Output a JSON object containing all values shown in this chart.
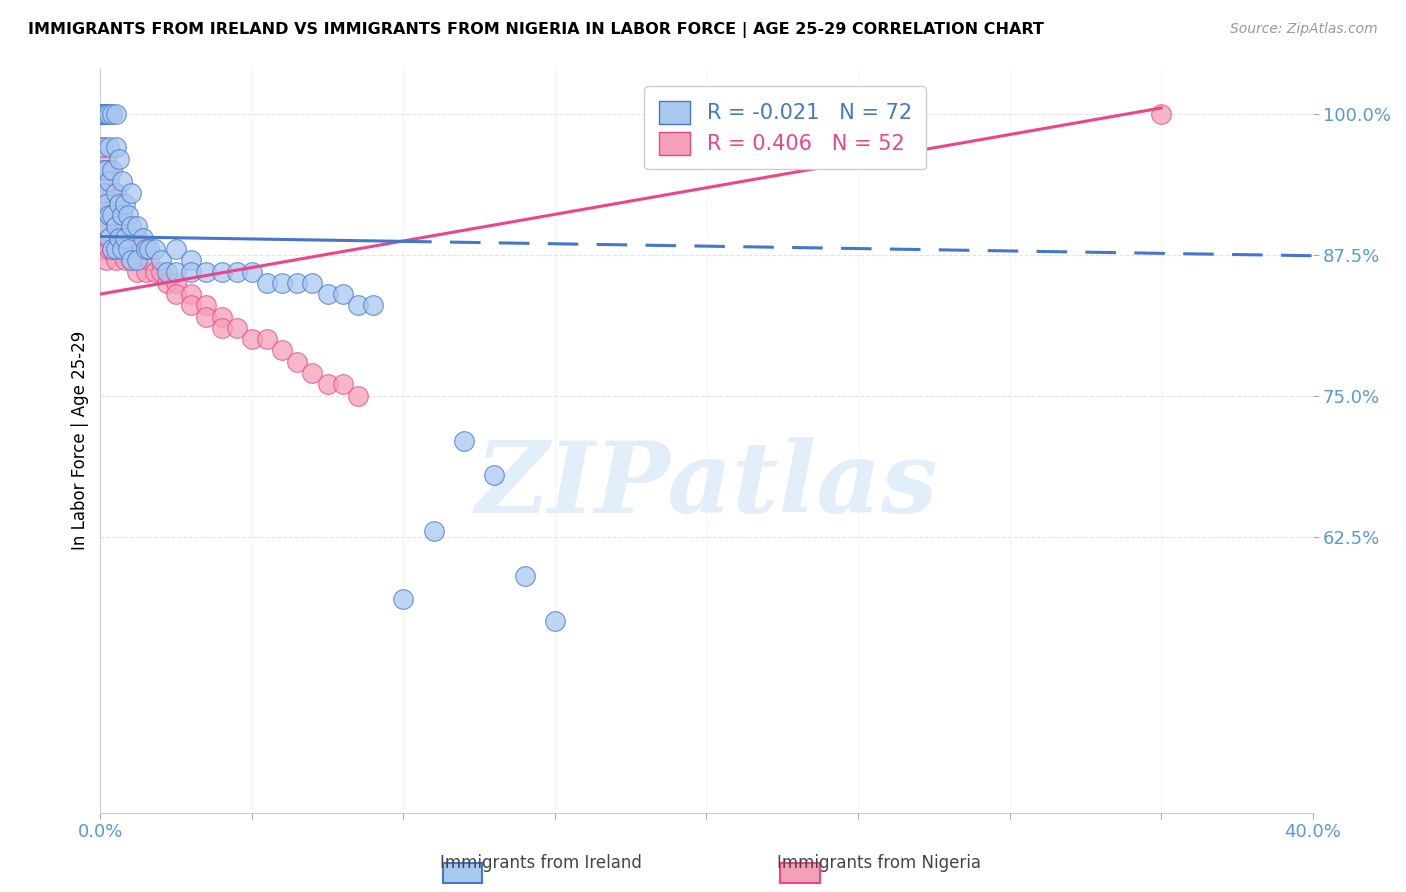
{
  "title": "IMMIGRANTS FROM IRELAND VS IMMIGRANTS FROM NIGERIA IN LABOR FORCE | AGE 25-29 CORRELATION CHART",
  "source": "Source: ZipAtlas.com",
  "ylabel": "In Labor Force | Age 25-29",
  "watermark": "ZIPatlas",
  "legend_ireland": "Immigrants from Ireland",
  "legend_nigeria": "Immigrants from Nigeria",
  "ireland_R": "-0.021",
  "ireland_N": "72",
  "nigeria_R": "0.406",
  "nigeria_N": "52",
  "xlim": [
    0.0,
    0.4
  ],
  "ylim": [
    0.38,
    1.04
  ],
  "yticks": [
    0.625,
    0.75,
    0.875,
    1.0
  ],
  "ytick_labels": [
    "62.5%",
    "75.0%",
    "87.5%",
    "100.0%"
  ],
  "xticks": [
    0.0,
    0.05,
    0.1,
    0.15,
    0.2,
    0.25,
    0.3,
    0.35,
    0.4
  ],
  "color_ireland": "#A8C8F0",
  "color_nigeria": "#F4A0B8",
  "color_ireland_line": "#4477CC",
  "color_nigeria_line": "#EE4488",
  "axis_color": "#5599DD",
  "grid_color": "#DDDDDD",
  "ireland_line_x": [
    0.0,
    0.4
  ],
  "ireland_line_y": [
    0.891,
    0.874
  ],
  "nigeria_line_x": [
    0.0,
    0.35
  ],
  "nigeria_line_y": [
    0.84,
    1.005
  ],
  "ireland_scatter_x": [
    0.001,
    0.001,
    0.001,
    0.001,
    0.001,
    0.001,
    0.001,
    0.001,
    0.002,
    0.002,
    0.002,
    0.002,
    0.002,
    0.002,
    0.003,
    0.003,
    0.003,
    0.003,
    0.003,
    0.004,
    0.004,
    0.004,
    0.004,
    0.005,
    0.005,
    0.005,
    0.005,
    0.005,
    0.006,
    0.006,
    0.006,
    0.007,
    0.007,
    0.007,
    0.008,
    0.008,
    0.009,
    0.009,
    0.01,
    0.01,
    0.01,
    0.012,
    0.012,
    0.014,
    0.015,
    0.016,
    0.018,
    0.02,
    0.022,
    0.025,
    0.025,
    0.03,
    0.03,
    0.035,
    0.04,
    0.045,
    0.05,
    0.055,
    0.06,
    0.065,
    0.07,
    0.075,
    0.08,
    0.085,
    0.09,
    0.1,
    0.11,
    0.12,
    0.13,
    0.14,
    0.15
  ],
  "ireland_scatter_y": [
    1.0,
    1.0,
    1.0,
    1.0,
    1.0,
    0.97,
    0.95,
    0.93,
    1.0,
    1.0,
    1.0,
    0.95,
    0.92,
    0.9,
    1.0,
    0.97,
    0.94,
    0.91,
    0.89,
    1.0,
    0.95,
    0.91,
    0.88,
    1.0,
    0.97,
    0.93,
    0.9,
    0.88,
    0.96,
    0.92,
    0.89,
    0.94,
    0.91,
    0.88,
    0.92,
    0.89,
    0.91,
    0.88,
    0.93,
    0.9,
    0.87,
    0.9,
    0.87,
    0.89,
    0.88,
    0.88,
    0.88,
    0.87,
    0.86,
    0.88,
    0.86,
    0.87,
    0.86,
    0.86,
    0.86,
    0.86,
    0.86,
    0.85,
    0.85,
    0.85,
    0.85,
    0.84,
    0.84,
    0.83,
    0.83,
    0.57,
    0.63,
    0.71,
    0.68,
    0.59,
    0.55
  ],
  "nigeria_scatter_x": [
    0.001,
    0.001,
    0.001,
    0.001,
    0.002,
    0.002,
    0.002,
    0.002,
    0.003,
    0.003,
    0.003,
    0.004,
    0.004,
    0.004,
    0.005,
    0.005,
    0.005,
    0.006,
    0.006,
    0.007,
    0.007,
    0.008,
    0.008,
    0.01,
    0.01,
    0.012,
    0.012,
    0.014,
    0.015,
    0.016,
    0.018,
    0.02,
    0.022,
    0.025,
    0.025,
    0.03,
    0.03,
    0.035,
    0.035,
    0.04,
    0.04,
    0.045,
    0.05,
    0.055,
    0.06,
    0.065,
    0.07,
    0.075,
    0.08,
    0.085,
    0.35
  ],
  "nigeria_scatter_y": [
    0.97,
    0.94,
    0.91,
    0.88,
    0.96,
    0.93,
    0.9,
    0.87,
    0.95,
    0.92,
    0.88,
    0.93,
    0.91,
    0.88,
    0.93,
    0.9,
    0.87,
    0.92,
    0.89,
    0.91,
    0.88,
    0.9,
    0.87,
    0.89,
    0.87,
    0.89,
    0.86,
    0.88,
    0.86,
    0.87,
    0.86,
    0.86,
    0.85,
    0.85,
    0.84,
    0.84,
    0.83,
    0.83,
    0.82,
    0.82,
    0.81,
    0.81,
    0.8,
    0.8,
    0.79,
    0.78,
    0.77,
    0.76,
    0.76,
    0.75,
    1.0
  ]
}
